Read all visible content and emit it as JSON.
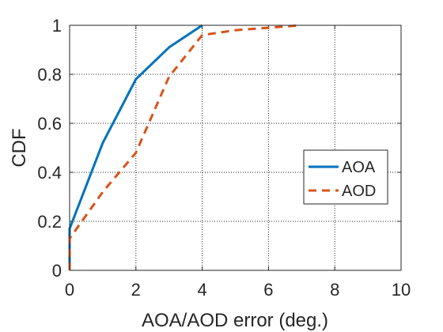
{
  "chart_data": {
    "type": "line",
    "xlabel": "AOA/AOD error (deg.)",
    "ylabel": "CDF",
    "xlim": [
      0,
      10
    ],
    "ylim": [
      0,
      1
    ],
    "xticks": [
      0,
      2,
      4,
      6,
      8,
      10
    ],
    "yticks": [
      0,
      0.2,
      0.4,
      0.6,
      0.8,
      1
    ],
    "grid": true,
    "legend_position": "right-center",
    "series": [
      {
        "name": "AOA",
        "color": "#0072bd",
        "style": "solid",
        "x": [
          0,
          0,
          1,
          2,
          3,
          4
        ],
        "y": [
          0,
          0.17,
          0.52,
          0.78,
          0.91,
          1.0
        ]
      },
      {
        "name": "AOD",
        "color": "#d95319",
        "style": "dashed",
        "x": [
          0,
          0,
          1,
          2,
          3,
          4,
          5,
          6,
          7
        ],
        "y": [
          0,
          0.13,
          0.32,
          0.48,
          0.79,
          0.96,
          0.98,
          0.99,
          1.0
        ]
      }
    ]
  }
}
